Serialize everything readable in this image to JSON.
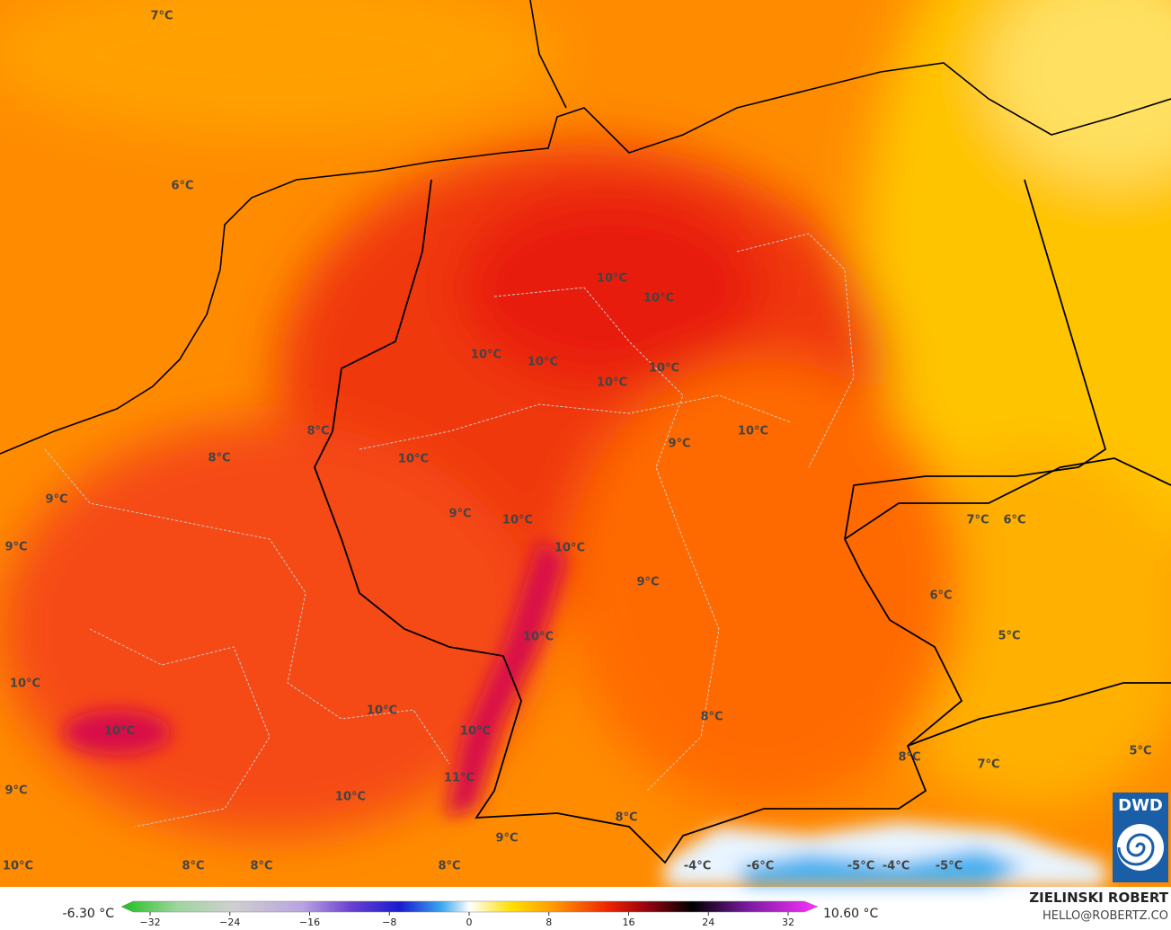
{
  "map": {
    "labels": [
      "7°C",
      "6°C",
      "10°C",
      "10°C",
      "10°C",
      "10°C",
      "10°C",
      "10°C",
      "8°C",
      "10°C",
      "9°C",
      "8°C",
      "10°C",
      "9°C",
      "9°C",
      "10°C",
      "7°C",
      "6°C",
      "9°C",
      "10°C",
      "9°C",
      "6°C",
      "10°C",
      "5°C",
      "10°C",
      "10°C",
      "8°C",
      "10°C",
      "10°C",
      "5°C",
      "8°C",
      "7°C",
      "11°C",
      "9°C",
      "10°C",
      "8°C",
      "9°C",
      "10°C",
      "8°C",
      "8°C",
      "8°C",
      "-4°C",
      "-6°C",
      "-5°C",
      "-4°C",
      "-5°C"
    ],
    "logo": "DWD"
  },
  "colorbar": {
    "min_label": "-6.30 °C",
    "max_label": "10.60 °C",
    "ticks": [
      {
        "value": -32,
        "label": "−32"
      },
      {
        "value": -24,
        "label": "−24"
      },
      {
        "value": -16,
        "label": "−16"
      },
      {
        "value": -8,
        "label": "−8"
      },
      0,
      8,
      16,
      24,
      32
    ]
  },
  "credits": {
    "name": "ZIELINSKI ROBERT",
    "contact": "HELLO@ROBERTZ.CO"
  }
}
